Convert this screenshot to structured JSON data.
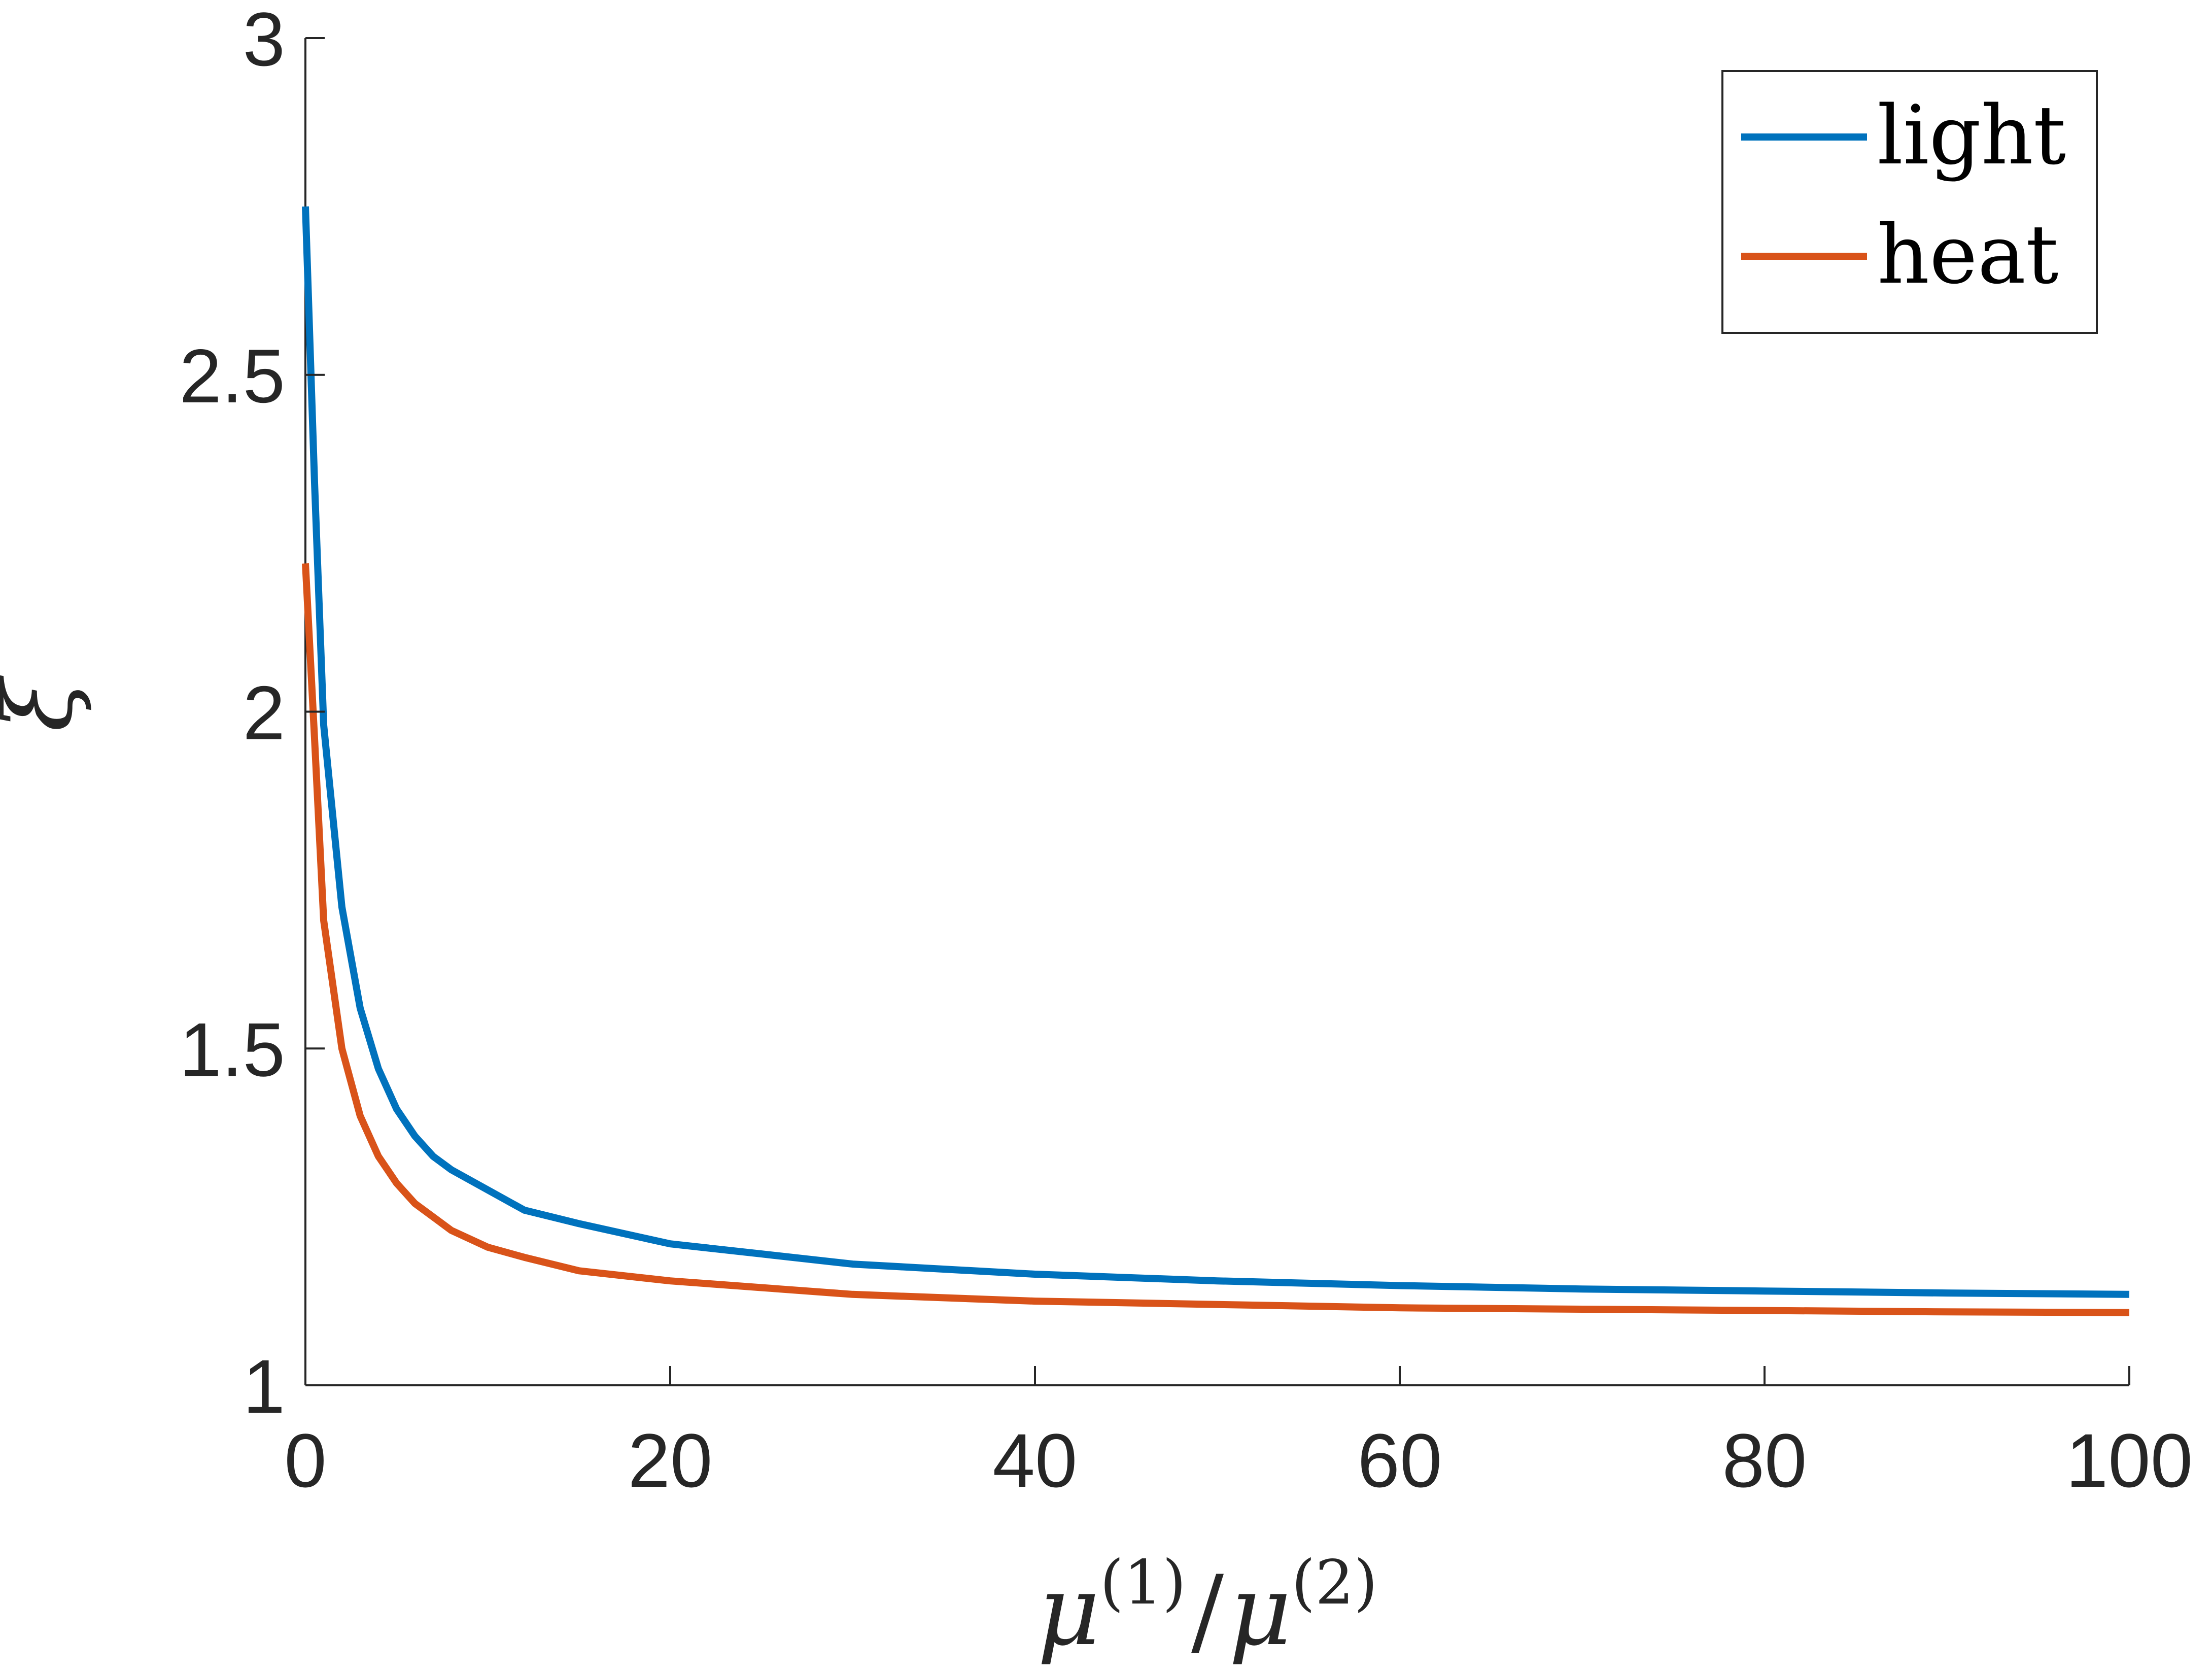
{
  "chart_data": {
    "type": "line",
    "title": "",
    "xlabel": {
      "base": "μ",
      "sup1": "(1)",
      "sep": "/",
      "base2": "μ",
      "sup2": "(2)"
    },
    "ylabel": "ξ",
    "xlim": [
      0,
      100
    ],
    "ylim": [
      1,
      3
    ],
    "xticks": [
      0,
      20,
      40,
      60,
      80,
      100
    ],
    "yticks": [
      1,
      1.5,
      2,
      2.5,
      3
    ],
    "xtick_labels": [
      "0",
      "20",
      "40",
      "60",
      "80",
      "100"
    ],
    "ytick_labels": [
      "1",
      "1.5",
      "2",
      "2.5",
      "3"
    ],
    "grid": false,
    "legend_position": "top-right",
    "series": [
      {
        "name": "light",
        "color": "#0072BD",
        "x": [
          0,
          0.5,
          1,
          2,
          3,
          4,
          5,
          6,
          7,
          8,
          10,
          12,
          15,
          20,
          25,
          30,
          40,
          50,
          60,
          70,
          80,
          90,
          100
        ],
        "y": [
          2.75,
          2.34,
          1.98,
          1.71,
          1.56,
          1.47,
          1.41,
          1.37,
          1.34,
          1.32,
          1.29,
          1.26,
          1.24,
          1.21,
          1.195,
          1.18,
          1.165,
          1.155,
          1.148,
          1.143,
          1.14,
          1.137,
          1.135
        ]
      },
      {
        "name": "heat",
        "color": "#D95319",
        "x": [
          0,
          0.5,
          1,
          2,
          3,
          4,
          5,
          6,
          7,
          8,
          10,
          12,
          15,
          20,
          25,
          30,
          40,
          50,
          60,
          70,
          80,
          90,
          100
        ],
        "y": [
          2.22,
          1.96,
          1.69,
          1.5,
          1.4,
          1.34,
          1.3,
          1.27,
          1.25,
          1.23,
          1.205,
          1.19,
          1.17,
          1.155,
          1.145,
          1.135,
          1.125,
          1.12,
          1.115,
          1.113,
          1.111,
          1.109,
          1.108
        ]
      }
    ]
  }
}
